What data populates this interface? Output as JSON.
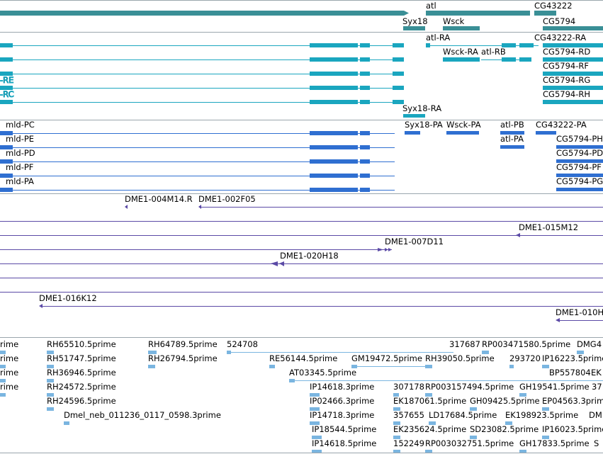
{
  "colors": {
    "gene": "#3a8f96",
    "transcript_a": "#1aa6bf",
    "transcript_b": "#2f6fd1",
    "clone": "#5b4aa6",
    "est": "#7ab5e0",
    "track_border": "#9aa6ad"
  },
  "gene_track": {
    "labels": {
      "atl": "atl",
      "cg43222": "CG43222",
      "syx18": "Syx18",
      "wsck": "Wsck",
      "cg5794": "CG5794"
    }
  },
  "transcript_track_a": {
    "labels": [
      "-RE",
      "-RC",
      "atl-RA",
      "CG43222-RA",
      "Wsck-RA",
      "atl-RB",
      "CG5794-RD",
      "CG5794-RF",
      "CG5794-RG",
      "CG5794-RH",
      "Syx18-RA"
    ]
  },
  "transcript_track_b": {
    "labels": [
      "mld-PC",
      "mld-PE",
      "mld-PD",
      "mld-PF",
      "mld-PA",
      "Syx18-PA",
      "Wsck-PA",
      "atl-PB",
      "atl-PA",
      "CG43222-PA",
      "CG5794-PH",
      "CG5794-PD",
      "CG5794-PF",
      "CG5794-PG"
    ]
  },
  "clone_track": {
    "labels": [
      "DME1-004M14.R",
      "DME1-002F05",
      "DME1-015M12",
      "DME1-007D11",
      "DME1-020H18",
      "DME1-016K12",
      "DME1-010H"
    ]
  },
  "est_track": {
    "labels": [
      "rime",
      "rime",
      "rime",
      "rime",
      "RH65510.5prime",
      "RH51747.5prime",
      "RH36946.5prime",
      "RH24572.5prime",
      "RH24596.5prime",
      "Dmel_neb_011236_0117_0598.3prime",
      "RH64789.5prime",
      "RH26794.5prime",
      "524708",
      "RE56144.5prime",
      "GM19472.5prime",
      "AT03345.5prime",
      "IP14618.3prime",
      "IP02466.3prime",
      "IP14718.3prime",
      "IP18544.5prime",
      "IP14618.5prime",
      "317687",
      "RP003471580.5prime",
      "DMG4",
      "RH39050.5prime",
      "293720",
      "IP16223.5prime",
      "BP557804",
      "EK",
      "307178",
      "RP003157494.5prime",
      "GH19541.5prime",
      "37",
      "EK187061.5prime",
      "GH09425.5prime",
      "EP04563.3prime",
      "357655",
      "LD17684.5prime",
      "EK198923.5prime",
      "DM",
      "EK235624.5prime",
      "SD23082.5prime",
      "IP16023.5prime",
      "152249",
      "RP003032751.5prime",
      "GH17833.5prime",
      "S"
    ]
  }
}
